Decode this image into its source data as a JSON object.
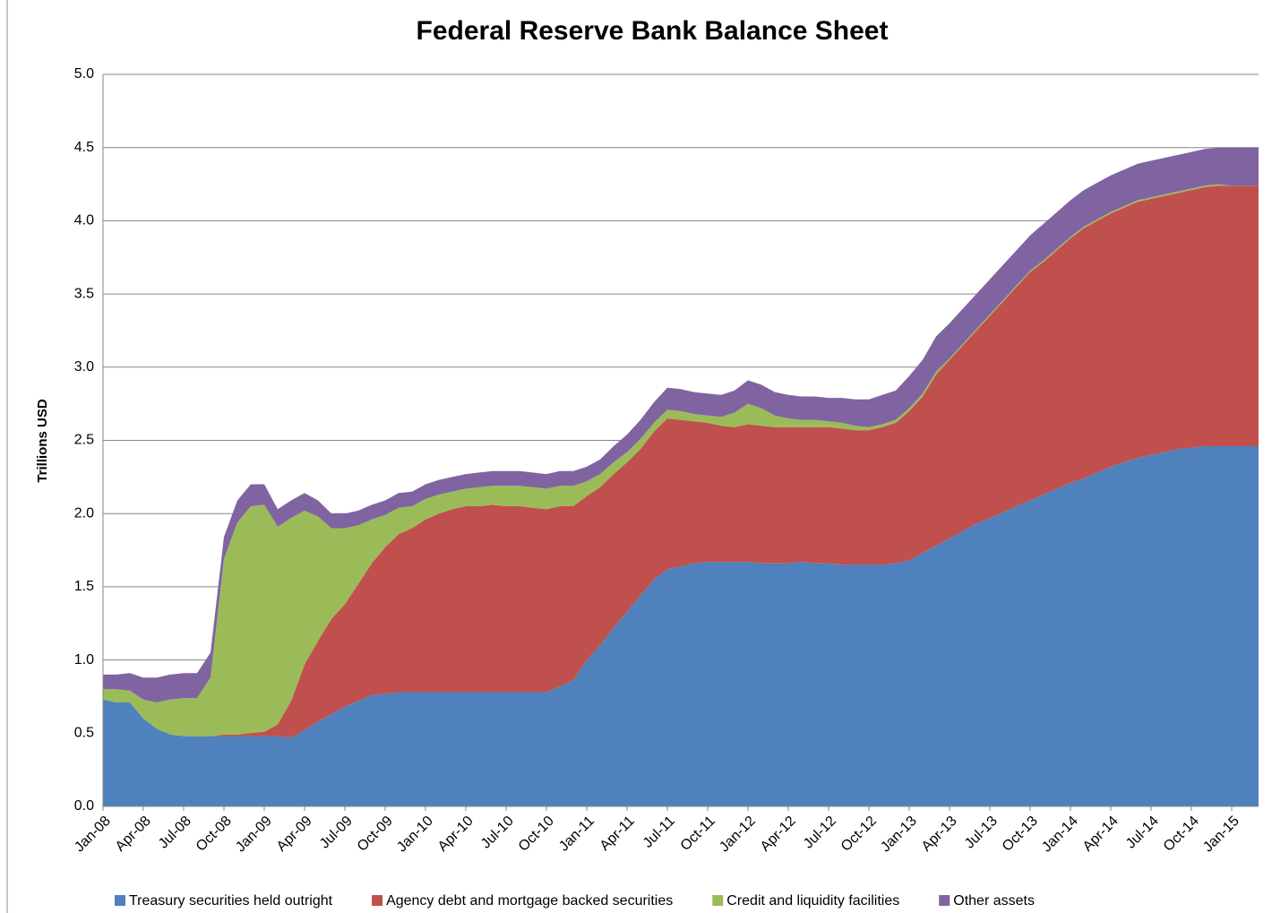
{
  "chart_data": {
    "type": "stacked_area",
    "title": "Federal Reserve Bank Balance Sheet",
    "y_label": "Trillions USD",
    "categories": [
      "Jan-08",
      null,
      null,
      "Apr-08",
      null,
      null,
      "Jul-08",
      null,
      null,
      "Oct-08",
      null,
      null,
      "Jan-09",
      null,
      null,
      "Apr-09",
      null,
      null,
      "Jul-09",
      null,
      null,
      "Oct-09",
      null,
      null,
      "Jan-10",
      null,
      null,
      "Apr-10",
      null,
      null,
      "Jul-10",
      null,
      null,
      "Oct-10",
      null,
      null,
      "Jan-11",
      null,
      null,
      "Apr-11",
      null,
      null,
      "Jul-11",
      null,
      null,
      "Oct-11",
      null,
      null,
      "Jan-12",
      null,
      null,
      "Apr-12",
      null,
      null,
      "Jul-12",
      null,
      null,
      "Oct-12",
      null,
      null,
      "Jan-13",
      null,
      null,
      "Apr-13",
      null,
      null,
      "Jul-13",
      null,
      null,
      "Oct-13",
      null,
      null,
      "Jan-14",
      null,
      null,
      "Apr-14",
      null,
      null,
      "Jul-14",
      null,
      null,
      "Oct-14",
      null,
      null,
      "Jan-15",
      null,
      null
    ],
    "series": [
      {
        "name": "Treasury securities held outright",
        "color": "#4f81bd",
        "values": [
          0.73,
          0.71,
          0.71,
          0.6,
          0.53,
          0.49,
          0.48,
          0.48,
          0.48,
          0.48,
          0.48,
          0.48,
          0.48,
          0.48,
          0.47,
          0.52,
          0.58,
          0.63,
          0.68,
          0.72,
          0.76,
          0.77,
          0.78,
          0.78,
          0.78,
          0.78,
          0.78,
          0.78,
          0.78,
          0.78,
          0.78,
          0.78,
          0.78,
          0.78,
          0.82,
          0.86,
          1.0,
          1.1,
          1.22,
          1.33,
          1.44,
          1.55,
          1.62,
          1.64,
          1.66,
          1.67,
          1.67,
          1.67,
          1.67,
          1.66,
          1.66,
          1.66,
          1.67,
          1.66,
          1.66,
          1.65,
          1.65,
          1.65,
          1.65,
          1.66,
          1.68,
          1.73,
          1.78,
          1.83,
          1.88,
          1.93,
          1.97,
          2.01,
          2.05,
          2.09,
          2.13,
          2.17,
          2.21,
          2.24,
          2.28,
          2.32,
          2.35,
          2.38,
          2.4,
          2.42,
          2.44,
          2.45,
          2.46,
          2.46,
          2.46,
          2.46,
          2.46
        ]
      },
      {
        "name": "Agency debt and mortgage backed securities",
        "color": "#c0504d",
        "values": [
          0,
          0,
          0,
          0,
          0,
          0,
          0,
          0,
          0,
          0.01,
          0.01,
          0.02,
          0.03,
          0.08,
          0.25,
          0.45,
          0.55,
          0.65,
          0.7,
          0.8,
          0.9,
          1.0,
          1.08,
          1.12,
          1.18,
          1.22,
          1.25,
          1.27,
          1.27,
          1.28,
          1.27,
          1.27,
          1.26,
          1.25,
          1.23,
          1.19,
          1.12,
          1.08,
          1.05,
          1.02,
          1.0,
          1.01,
          1.03,
          1.0,
          0.97,
          0.95,
          0.93,
          0.92,
          0.94,
          0.94,
          0.93,
          0.93,
          0.92,
          0.93,
          0.93,
          0.93,
          0.92,
          0.92,
          0.94,
          0.96,
          1.02,
          1.07,
          1.17,
          1.22,
          1.27,
          1.32,
          1.38,
          1.44,
          1.5,
          1.56,
          1.59,
          1.63,
          1.67,
          1.71,
          1.72,
          1.73,
          1.74,
          1.75,
          1.75,
          1.75,
          1.75,
          1.76,
          1.77,
          1.78,
          1.78,
          1.78,
          1.78
        ]
      },
      {
        "name": "Credit and liquidity facilities",
        "color": "#9bbb59",
        "values": [
          0.07,
          0.09,
          0.08,
          0.13,
          0.18,
          0.24,
          0.26,
          0.26,
          0.4,
          1.2,
          1.45,
          1.55,
          1.55,
          1.35,
          1.25,
          1.05,
          0.85,
          0.62,
          0.52,
          0.4,
          0.3,
          0.22,
          0.18,
          0.15,
          0.14,
          0.13,
          0.12,
          0.12,
          0.13,
          0.13,
          0.14,
          0.14,
          0.14,
          0.14,
          0.14,
          0.14,
          0.1,
          0.09,
          0.08,
          0.07,
          0.07,
          0.06,
          0.06,
          0.06,
          0.05,
          0.05,
          0.06,
          0.1,
          0.14,
          0.12,
          0.08,
          0.06,
          0.05,
          0.05,
          0.04,
          0.04,
          0.03,
          0.02,
          0.02,
          0.02,
          0.02,
          0.02,
          0.02,
          0.01,
          0.01,
          0.01,
          0.01,
          0.01,
          0.01,
          0.01,
          0.01,
          0.01,
          0.01,
          0.01,
          0.01,
          0.01,
          0.01,
          0.01,
          0.01,
          0.01,
          0.01,
          0.01,
          0.01,
          0.01,
          0,
          0,
          0
        ]
      },
      {
        "name": "Other assets",
        "color": "#8064a2",
        "values": [
          0.1,
          0.1,
          0.12,
          0.15,
          0.17,
          0.17,
          0.17,
          0.17,
          0.17,
          0.15,
          0.15,
          0.15,
          0.14,
          0.12,
          0.12,
          0.12,
          0.11,
          0.1,
          0.1,
          0.1,
          0.1,
          0.1,
          0.1,
          0.1,
          0.1,
          0.1,
          0.1,
          0.1,
          0.1,
          0.1,
          0.1,
          0.1,
          0.1,
          0.1,
          0.1,
          0.1,
          0.1,
          0.1,
          0.11,
          0.12,
          0.13,
          0.14,
          0.15,
          0.15,
          0.15,
          0.15,
          0.15,
          0.15,
          0.16,
          0.16,
          0.16,
          0.16,
          0.16,
          0.16,
          0.16,
          0.17,
          0.18,
          0.19,
          0.2,
          0.2,
          0.22,
          0.23,
          0.24,
          0.24,
          0.24,
          0.24,
          0.24,
          0.24,
          0.24,
          0.24,
          0.25,
          0.25,
          0.25,
          0.25,
          0.25,
          0.25,
          0.25,
          0.25,
          0.25,
          0.25,
          0.25,
          0.25,
          0.25,
          0.25,
          0.26,
          0.26,
          0.26
        ]
      }
    ],
    "ylim": [
      0,
      5
    ],
    "yticks": [
      {
        "value": 0,
        "label": "0.0"
      },
      {
        "value": 0.5,
        "label": "0.5"
      },
      {
        "value": 1,
        "label": "1.0"
      },
      {
        "value": 1.5,
        "label": "1.5"
      },
      {
        "value": 2,
        "label": "2.0"
      },
      {
        "value": 2.5,
        "label": "2.5"
      },
      {
        "value": 3,
        "label": "3.0"
      },
      {
        "value": 3.5,
        "label": "3.5"
      },
      {
        "value": 4,
        "label": "4.0"
      },
      {
        "value": 4.5,
        "label": "4.5"
      },
      {
        "value": 5,
        "label": "5.0"
      }
    ],
    "grid": true,
    "legend": "bottom"
  }
}
